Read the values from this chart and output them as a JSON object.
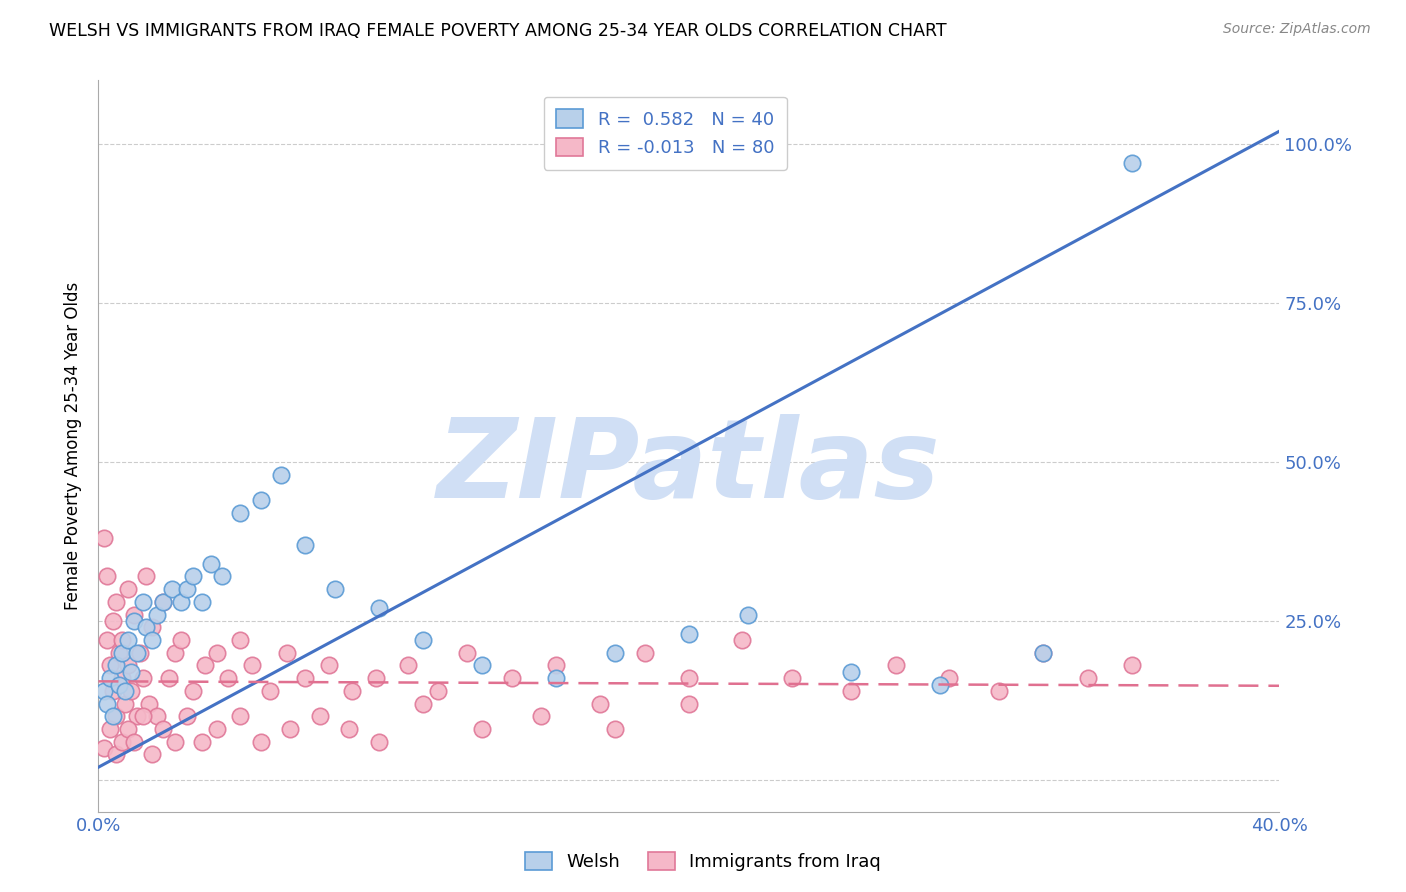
{
  "title": "WELSH VS IMMIGRANTS FROM IRAQ FEMALE POVERTY AMONG 25-34 YEAR OLDS CORRELATION CHART",
  "source": "Source: ZipAtlas.com",
  "ylabel": "Female Poverty Among 25-34 Year Olds",
  "xlim": [
    0.0,
    0.4
  ],
  "ylim": [
    -0.05,
    1.1
  ],
  "yticks": [
    0.0,
    0.25,
    0.5,
    0.75,
    1.0
  ],
  "ytick_labels": [
    "",
    "25.0%",
    "50.0%",
    "75.0%",
    "100.0%"
  ],
  "xtick_positions": [
    0.0,
    0.1,
    0.2,
    0.3,
    0.4
  ],
  "xtick_labels": [
    "0.0%",
    "",
    "",
    "",
    "40.0%"
  ],
  "welsh_R": 0.582,
  "welsh_N": 40,
  "iraq_R": -0.013,
  "iraq_N": 80,
  "welsh_color": "#b8d0ea",
  "welsh_edge_color": "#5b9bd5",
  "iraq_color": "#f5b8c8",
  "iraq_edge_color": "#e07898",
  "trend_blue": "#4472c4",
  "trend_pink": "#e07090",
  "watermark": "ZIPatlas",
  "watermark_color": "#d0dff5",
  "blue_line_x0": 0.0,
  "blue_line_y0": 0.02,
  "blue_line_x1": 0.4,
  "blue_line_y1": 1.02,
  "pink_line_x0": 0.0,
  "pink_line_y0": 0.155,
  "pink_line_x1": 0.4,
  "pink_line_y1": 0.148,
  "welsh_x": [
    0.002,
    0.003,
    0.004,
    0.005,
    0.006,
    0.007,
    0.008,
    0.009,
    0.01,
    0.011,
    0.012,
    0.013,
    0.015,
    0.016,
    0.018,
    0.02,
    0.022,
    0.025,
    0.028,
    0.03,
    0.032,
    0.035,
    0.038,
    0.042,
    0.048,
    0.055,
    0.062,
    0.07,
    0.08,
    0.095,
    0.11,
    0.13,
    0.155,
    0.175,
    0.2,
    0.22,
    0.255,
    0.285,
    0.32,
    0.35
  ],
  "welsh_y": [
    0.14,
    0.12,
    0.16,
    0.1,
    0.18,
    0.15,
    0.2,
    0.14,
    0.22,
    0.17,
    0.25,
    0.2,
    0.28,
    0.24,
    0.22,
    0.26,
    0.28,
    0.3,
    0.28,
    0.3,
    0.32,
    0.28,
    0.34,
    0.32,
    0.42,
    0.44,
    0.48,
    0.37,
    0.3,
    0.27,
    0.22,
    0.18,
    0.16,
    0.2,
    0.23,
    0.26,
    0.17,
    0.15,
    0.2,
    0.97
  ],
  "iraq_x": [
    0.002,
    0.003,
    0.003,
    0.004,
    0.005,
    0.005,
    0.006,
    0.006,
    0.007,
    0.008,
    0.008,
    0.009,
    0.01,
    0.01,
    0.011,
    0.012,
    0.013,
    0.014,
    0.015,
    0.016,
    0.017,
    0.018,
    0.02,
    0.022,
    0.024,
    0.026,
    0.028,
    0.032,
    0.036,
    0.04,
    0.044,
    0.048,
    0.052,
    0.058,
    0.064,
    0.07,
    0.078,
    0.086,
    0.094,
    0.105,
    0.115,
    0.125,
    0.14,
    0.155,
    0.17,
    0.185,
    0.2,
    0.218,
    0.235,
    0.255,
    0.27,
    0.288,
    0.305,
    0.32,
    0.335,
    0.35,
    0.002,
    0.004,
    0.006,
    0.008,
    0.01,
    0.012,
    0.015,
    0.018,
    0.022,
    0.026,
    0.03,
    0.035,
    0.04,
    0.048,
    0.055,
    0.065,
    0.075,
    0.085,
    0.095,
    0.11,
    0.13,
    0.15,
    0.175,
    0.2
  ],
  "iraq_y": [
    0.38,
    0.22,
    0.32,
    0.18,
    0.14,
    0.25,
    0.1,
    0.28,
    0.2,
    0.16,
    0.22,
    0.12,
    0.18,
    0.3,
    0.14,
    0.26,
    0.1,
    0.2,
    0.16,
    0.32,
    0.12,
    0.24,
    0.1,
    0.28,
    0.16,
    0.2,
    0.22,
    0.14,
    0.18,
    0.2,
    0.16,
    0.22,
    0.18,
    0.14,
    0.2,
    0.16,
    0.18,
    0.14,
    0.16,
    0.18,
    0.14,
    0.2,
    0.16,
    0.18,
    0.12,
    0.2,
    0.16,
    0.22,
    0.16,
    0.14,
    0.18,
    0.16,
    0.14,
    0.2,
    0.16,
    0.18,
    0.05,
    0.08,
    0.04,
    0.06,
    0.08,
    0.06,
    0.1,
    0.04,
    0.08,
    0.06,
    0.1,
    0.06,
    0.08,
    0.1,
    0.06,
    0.08,
    0.1,
    0.08,
    0.06,
    0.12,
    0.08,
    0.1,
    0.08,
    0.12
  ]
}
